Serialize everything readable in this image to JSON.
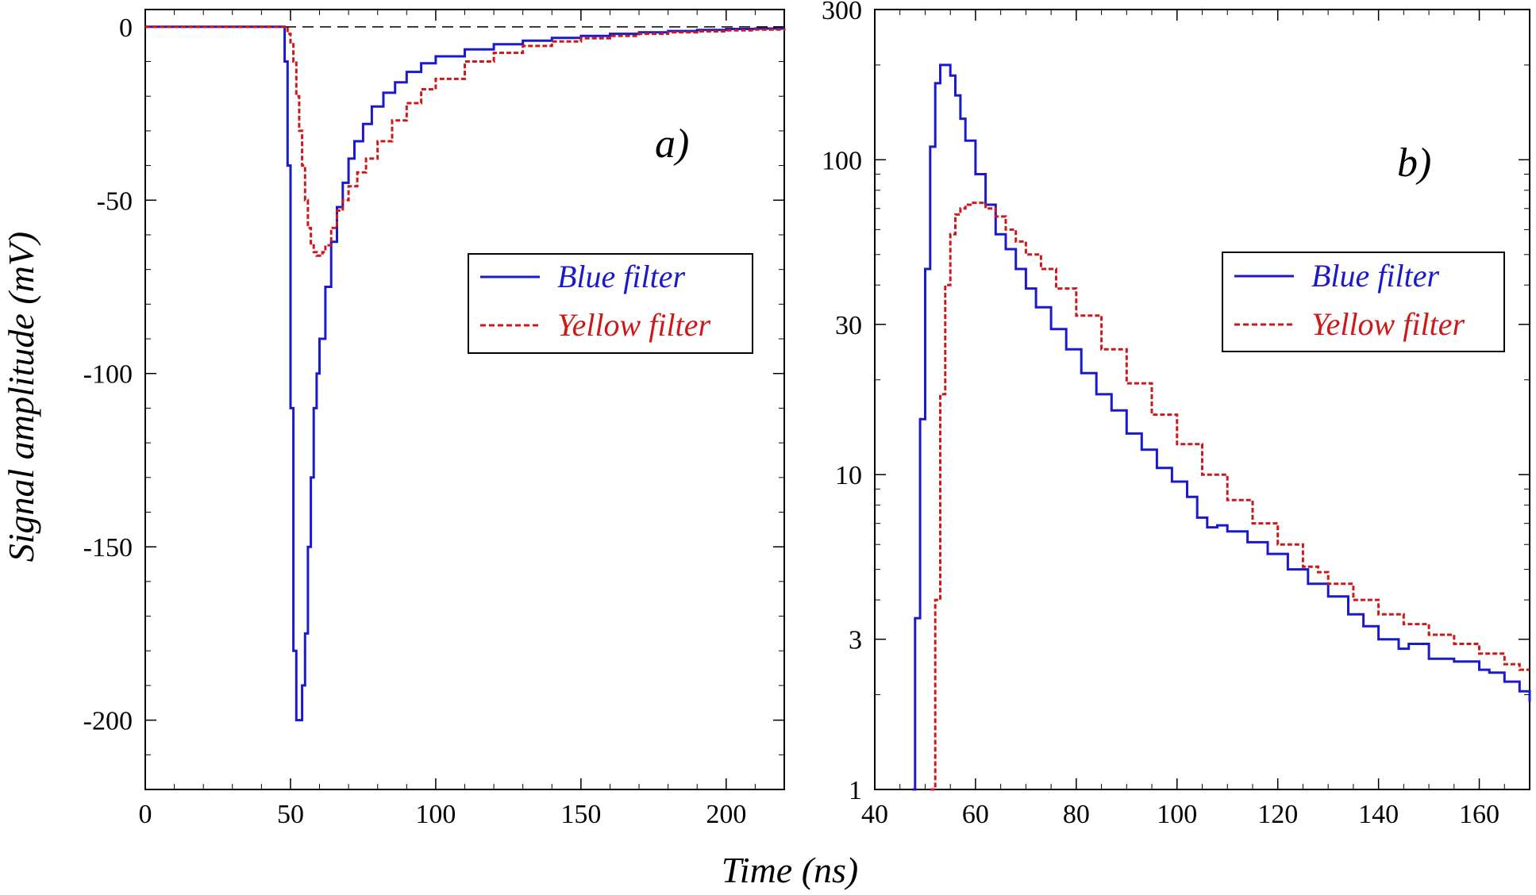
{
  "figure": {
    "shared_xlabel": "Time (ns)"
  },
  "chart_data": [
    {
      "type": "line",
      "panel_label": "a)",
      "xlabel": "Time (ns)",
      "ylabel": "Signal amplitude (mV)",
      "xlim": [
        0,
        220
      ],
      "ylim": [
        -220,
        5
      ],
      "x_ticks": [
        0,
        50,
        100,
        150,
        200
      ],
      "y_ticks": [
        0,
        -50,
        -100,
        -150,
        -200
      ],
      "baseline": 0,
      "legend_position": "right-middle",
      "grid": false,
      "series": [
        {
          "name": "Blue filter",
          "color": "#1a1acc",
          "style": "solid",
          "x": [
            0,
            10,
            20,
            30,
            40,
            47,
            48,
            49,
            50,
            51,
            52,
            53,
            54,
            55,
            56,
            57,
            58,
            59,
            60,
            62,
            64,
            66,
            68,
            70,
            72,
            75,
            78,
            82,
            86,
            90,
            95,
            100,
            110,
            120,
            130,
            140,
            150,
            160,
            170,
            180,
            190,
            200,
            210,
            220
          ],
          "y": [
            0,
            0,
            0,
            0,
            0,
            0,
            -10,
            -40,
            -110,
            -180,
            -200,
            -200,
            -190,
            -175,
            -150,
            -130,
            -110,
            -100,
            -90,
            -75,
            -62,
            -52,
            -45,
            -38,
            -33,
            -28,
            -23,
            -19,
            -16,
            -13,
            -10.5,
            -8.5,
            -6.5,
            -5,
            -4,
            -3.2,
            -2.6,
            -2,
            -1.6,
            -1.2,
            -0.9,
            -0.6,
            -0.5,
            -0.4
          ]
        },
        {
          "name": "Yellow filter",
          "color": "#cc1a1a",
          "style": "dashed",
          "x": [
            0,
            10,
            20,
            30,
            40,
            48,
            49,
            50,
            51,
            52,
            53,
            54,
            55,
            56,
            57,
            58,
            59,
            60,
            61,
            62,
            64,
            66,
            68,
            70,
            73,
            76,
            80,
            85,
            90,
            95,
            100,
            110,
            120,
            130,
            140,
            150,
            160,
            170,
            180,
            190,
            200,
            210,
            220
          ],
          "y": [
            0,
            0,
            0,
            0,
            0,
            0,
            -2,
            -5,
            -10,
            -20,
            -30,
            -40,
            -50,
            -58,
            -63,
            -65,
            -66,
            -66,
            -65,
            -63,
            -58,
            -53,
            -50,
            -46,
            -42,
            -38,
            -33,
            -27,
            -22,
            -18,
            -15,
            -10,
            -7.5,
            -5.5,
            -4.2,
            -3.3,
            -2.6,
            -2,
            -1.6,
            -1.3,
            -1,
            -0.8,
            -0.6
          ]
        }
      ]
    },
    {
      "type": "line",
      "panel_label": "b)",
      "xlabel": "Time (ns)",
      "ylabel": "",
      "xlim": [
        40,
        170
      ],
      "ylim": [
        1,
        300
      ],
      "yscale": "log",
      "x_ticks": [
        40,
        60,
        80,
        100,
        120,
        140,
        160
      ],
      "y_ticks": [
        1,
        3,
        10,
        30,
        100,
        300
      ],
      "legend_position": "right-upper",
      "grid": false,
      "series": [
        {
          "name": "Blue filter",
          "color": "#1a1acc",
          "style": "solid",
          "x": [
            47.5,
            48,
            49,
            50,
            51,
            52,
            53,
            54,
            55,
            56,
            57,
            58,
            60,
            62,
            64,
            66,
            68,
            70,
            72,
            75,
            78,
            81,
            84,
            87,
            90,
            93,
            96,
            99,
            102,
            104,
            106,
            108,
            110,
            114,
            118,
            122,
            126,
            130,
            134,
            136,
            137,
            140,
            144,
            146,
            150,
            155,
            160,
            162,
            165,
            168,
            170
          ],
          "y": [
            1,
            3.5,
            15,
            45,
            110,
            175,
            200,
            200,
            185,
            160,
            135,
            115,
            90,
            72,
            58,
            52,
            45,
            39,
            34,
            29,
            25,
            21,
            18,
            16,
            13.5,
            12,
            10.5,
            9.5,
            8.5,
            7.3,
            6.8,
            6.9,
            6.6,
            6.1,
            5.6,
            5.0,
            4.5,
            4.1,
            3.6,
            3.6,
            3.3,
            3.0,
            2.8,
            2.9,
            2.6,
            2.55,
            2.4,
            2.35,
            2.2,
            2.05,
            1.9
          ]
        },
        {
          "name": "Yellow filter",
          "color": "#cc1a1a",
          "style": "dashed",
          "x": [
            51,
            52,
            53,
            54,
            55,
            56,
            57,
            58,
            59,
            60,
            62,
            64,
            66,
            68,
            70,
            73,
            76,
            80,
            85,
            90,
            95,
            100,
            105,
            110,
            115,
            120,
            125,
            128,
            130,
            135,
            140,
            145,
            150,
            155,
            160,
            165,
            168,
            170
          ],
          "y": [
            1,
            4,
            18,
            40,
            58,
            67,
            70,
            72,
            73,
            73,
            70,
            66,
            60,
            55,
            50,
            45,
            39,
            32,
            25,
            19.5,
            15.5,
            12.5,
            10,
            8.3,
            7,
            6,
            5.1,
            4.9,
            4.5,
            4.0,
            3.6,
            3.35,
            3.1,
            2.9,
            2.7,
            2.5,
            2.4,
            2.4
          ]
        }
      ]
    }
  ]
}
